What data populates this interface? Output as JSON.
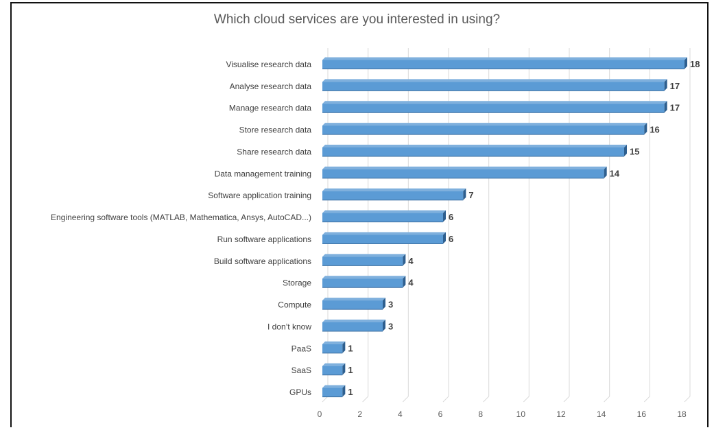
{
  "chart_data": {
    "type": "bar",
    "orientation": "horizontal",
    "title": "Which cloud services are you interested in using?",
    "categories": [
      "Visualise research data",
      "Analyse research data",
      "Manage research data",
      "Store research data",
      "Share research data",
      "Data management training",
      "Software application training",
      "Engineering software tools (MATLAB, Mathematica, Ansys, AutoCAD...)",
      "Run software applications",
      "Build software applications",
      "Storage",
      "Compute",
      "I don’t know",
      "PaaS",
      "SaaS",
      "GPUs"
    ],
    "values": [
      18,
      17,
      17,
      16,
      15,
      14,
      7,
      6,
      6,
      4,
      4,
      3,
      3,
      1,
      1,
      1
    ],
    "xlim": [
      0,
      18
    ],
    "xticks": [
      0,
      2,
      4,
      6,
      8,
      10,
      12,
      14,
      16,
      18
    ],
    "grid": true,
    "legend": "none",
    "bar_color": "#5b9bd5",
    "bar_edge_color": "#2e5f8f",
    "data_labels": true
  }
}
